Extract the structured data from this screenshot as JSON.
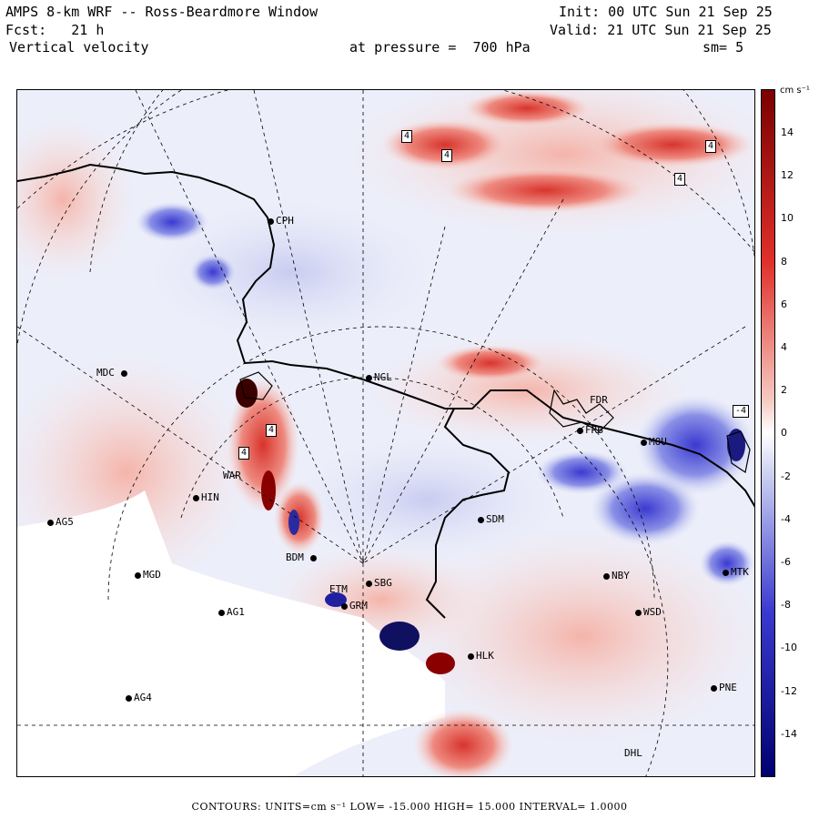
{
  "header": {
    "title": "AMPS 8-km WRF -- Ross-Beardmore Window",
    "init": "Init: 00 UTC Sun 21 Sep 25",
    "forecast": "Fcst:   21 h",
    "valid": "Valid: 21 UTC Sun 21 Sep 25",
    "field": "Vertical velocity",
    "pressure": "at pressure =  700 hPa",
    "smoothing": "sm= 5"
  },
  "colorbar": {
    "unit": "cm s⁻¹",
    "tick_labels": [
      "14",
      "12",
      "10",
      "8",
      "6",
      "4",
      "2",
      "0",
      "-2",
      "-4",
      "-6",
      "-8",
      "-10",
      "-12",
      "-14"
    ],
    "colors": {
      "strong_positive": "#7a0000",
      "positive": "#e0302a",
      "weak_positive": "#f6c8c0",
      "zero": "#ffffff",
      "weak_negative": "#ccd0f0",
      "negative": "#3a3ad0",
      "strong_negative": "#000070"
    }
  },
  "stations": [
    {
      "id": "CPH",
      "label": "CPH"
    },
    {
      "id": "MDC",
      "label": "MDC"
    },
    {
      "id": "NGL",
      "label": "NGL"
    },
    {
      "id": "FDR",
      "label": "FDR"
    },
    {
      "id": "FRB",
      "label": "FRB"
    },
    {
      "id": "MOU",
      "label": "MOU"
    },
    {
      "id": "HIN",
      "label": "HIN"
    },
    {
      "id": "AG5",
      "label": "AG5"
    },
    {
      "id": "SDM",
      "label": "SDM"
    },
    {
      "id": "MGD",
      "label": "MGD"
    },
    {
      "id": "BDM",
      "label": "BDM"
    },
    {
      "id": "SBG",
      "label": "SBG"
    },
    {
      "id": "ETM",
      "label": "ETM"
    },
    {
      "id": "GRM",
      "label": "GRM"
    },
    {
      "id": "AG1",
      "label": "AG1"
    },
    {
      "id": "NBY",
      "label": "NBY"
    },
    {
      "id": "MTK",
      "label": "MTK"
    },
    {
      "id": "WSD",
      "label": "WSD"
    },
    {
      "id": "HLK",
      "label": "HLK"
    },
    {
      "id": "AG4",
      "label": "AG4"
    },
    {
      "id": "PNE",
      "label": "PNE"
    },
    {
      "id": "DHL",
      "label": "DHL"
    },
    {
      "id": "WAR",
      "label": "WAR"
    }
  ],
  "contour_labels": [
    "4",
    "4",
    "4",
    "4",
    "-4",
    "4",
    "4"
  ],
  "footer": {
    "text": "CONTOURS:  UNITS=cm s⁻¹  LOW= -15.000     HIGH=  15.000     INTERVAL=   1.0000"
  }
}
